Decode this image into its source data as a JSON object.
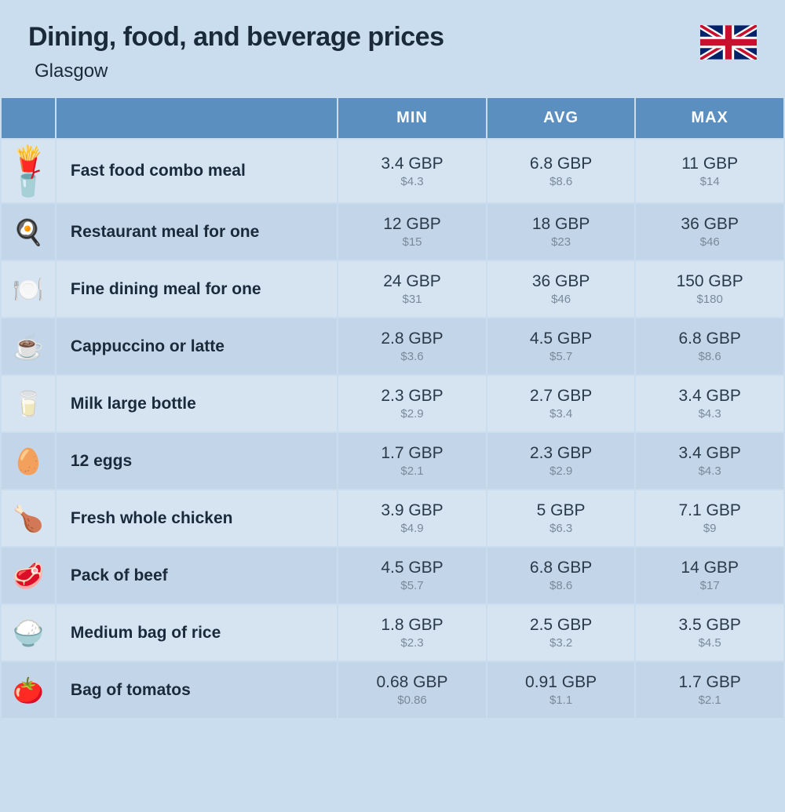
{
  "header": {
    "title": "Dining, food, and beverage prices",
    "subtitle": "Glasgow",
    "flag": "uk-flag"
  },
  "columns": [
    "",
    "",
    "MIN",
    "AVG",
    "MAX"
  ],
  "currency_primary": "GBP",
  "currency_secondary_prefix": "$",
  "colors": {
    "page_bg": "#c9ddee",
    "header_bg": "#5a8fc0",
    "header_text": "#ffffff",
    "row_light": "#d6e4f2",
    "row_dark": "#c3d5e9",
    "label_text": "#1a2a3a",
    "gbp_text": "#2a3a4a",
    "usd_text": "#7a8a9a",
    "border": "#c9ddee"
  },
  "typography": {
    "title_size": 34,
    "title_weight": 800,
    "subtitle_size": 24,
    "header_size": 20,
    "header_weight": 700,
    "label_size": 21,
    "label_weight": 700,
    "gbp_size": 21,
    "usd_size": 15
  },
  "rows": [
    {
      "icon": "fast-food-icon",
      "glyph": "🍟🥤",
      "label": "Fast food combo meal",
      "min_gbp": "3.4",
      "min_usd": "4.3",
      "avg_gbp": "6.8",
      "avg_usd": "8.6",
      "max_gbp": "11",
      "max_usd": "14"
    },
    {
      "icon": "restaurant-icon",
      "glyph": "🍳",
      "label": "Restaurant meal for one",
      "min_gbp": "12",
      "min_usd": "15",
      "avg_gbp": "18",
      "avg_usd": "23",
      "max_gbp": "36",
      "max_usd": "46"
    },
    {
      "icon": "fine-dining-icon",
      "glyph": "🍽️",
      "label": "Fine dining meal for one",
      "min_gbp": "24",
      "min_usd": "31",
      "avg_gbp": "36",
      "avg_usd": "46",
      "max_gbp": "150",
      "max_usd": "180"
    },
    {
      "icon": "coffee-icon",
      "glyph": "☕",
      "label": "Cappuccino or latte",
      "min_gbp": "2.8",
      "min_usd": "3.6",
      "avg_gbp": "4.5",
      "avg_usd": "5.7",
      "max_gbp": "6.8",
      "max_usd": "8.6"
    },
    {
      "icon": "milk-icon",
      "glyph": "🥛",
      "label": "Milk large bottle",
      "min_gbp": "2.3",
      "min_usd": "2.9",
      "avg_gbp": "2.7",
      "avg_usd": "3.4",
      "max_gbp": "3.4",
      "max_usd": "4.3"
    },
    {
      "icon": "eggs-icon",
      "glyph": "🥚",
      "label": "12 eggs",
      "min_gbp": "1.7",
      "min_usd": "2.1",
      "avg_gbp": "2.3",
      "avg_usd": "2.9",
      "max_gbp": "3.4",
      "max_usd": "4.3"
    },
    {
      "icon": "chicken-icon",
      "glyph": "🍗",
      "label": "Fresh whole chicken",
      "min_gbp": "3.9",
      "min_usd": "4.9",
      "avg_gbp": "5",
      "avg_usd": "6.3",
      "max_gbp": "7.1",
      "max_usd": "9"
    },
    {
      "icon": "beef-icon",
      "glyph": "🥩",
      "label": "Pack of beef",
      "min_gbp": "4.5",
      "min_usd": "5.7",
      "avg_gbp": "6.8",
      "avg_usd": "8.6",
      "max_gbp": "14",
      "max_usd": "17"
    },
    {
      "icon": "rice-icon",
      "glyph": "🍚",
      "label": "Medium bag of rice",
      "min_gbp": "1.8",
      "min_usd": "2.3",
      "avg_gbp": "2.5",
      "avg_usd": "3.2",
      "max_gbp": "3.5",
      "max_usd": "4.5"
    },
    {
      "icon": "tomato-icon",
      "glyph": "🍅",
      "label": "Bag of tomatos",
      "min_gbp": "0.68",
      "min_usd": "0.86",
      "avg_gbp": "0.91",
      "avg_usd": "1.1",
      "max_gbp": "1.7",
      "max_usd": "2.1"
    }
  ]
}
